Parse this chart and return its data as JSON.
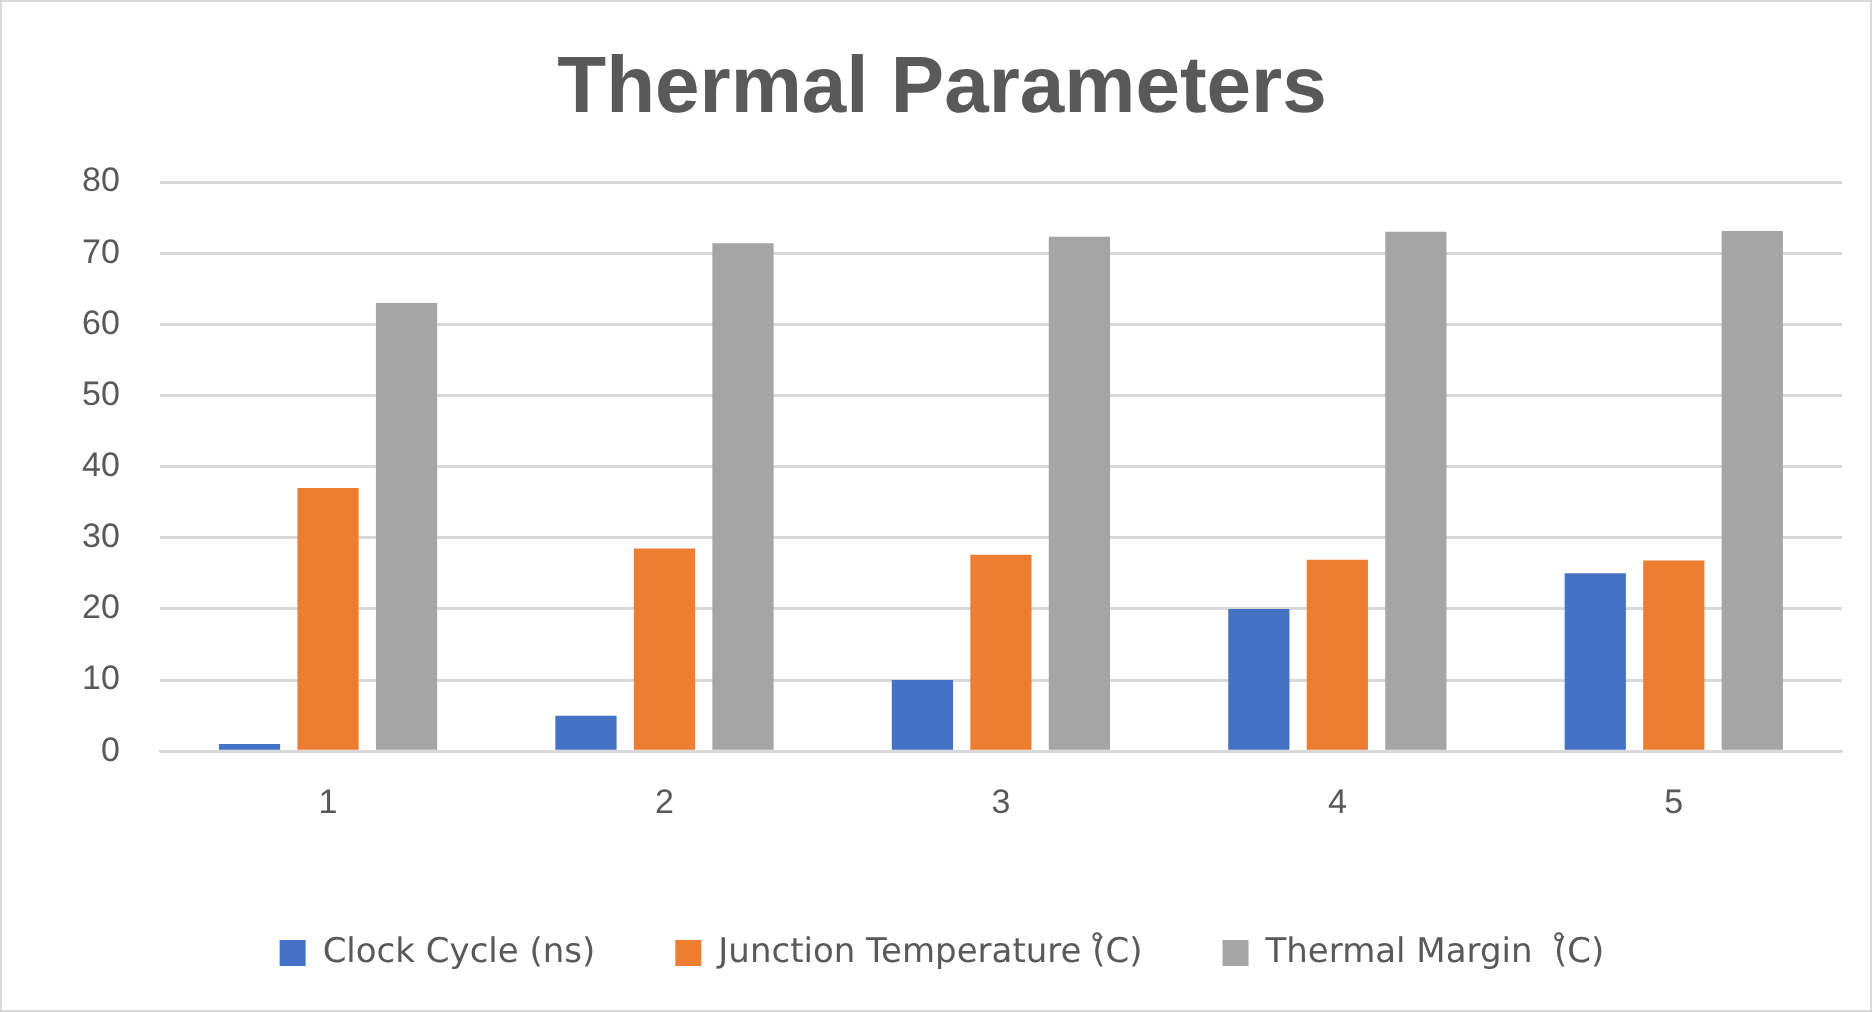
{
  "chart_data": {
    "type": "bar",
    "title": "Thermal Parameters",
    "categories": [
      "1",
      "2",
      "3",
      "4",
      "5"
    ],
    "series": [
      {
        "name": "Clock Cycle (ns)",
        "color": "#4472c4",
        "values": [
          1,
          5,
          10,
          20,
          25
        ]
      },
      {
        "name": "Junction Temperature (̊C)",
        "color": "#ed7d31",
        "values": [
          37,
          28.5,
          27.6,
          26.9,
          26.8
        ]
      },
      {
        "name": "Thermal Margin  (̊C)",
        "color": "#a5a5a5",
        "values": [
          63,
          71.4,
          72.3,
          73,
          73.1
        ]
      }
    ],
    "ylim": [
      0,
      80
    ],
    "yticks": [
      0,
      10,
      20,
      30,
      40,
      50,
      60,
      70,
      80
    ],
    "grid": "y",
    "legend": "bottom"
  }
}
